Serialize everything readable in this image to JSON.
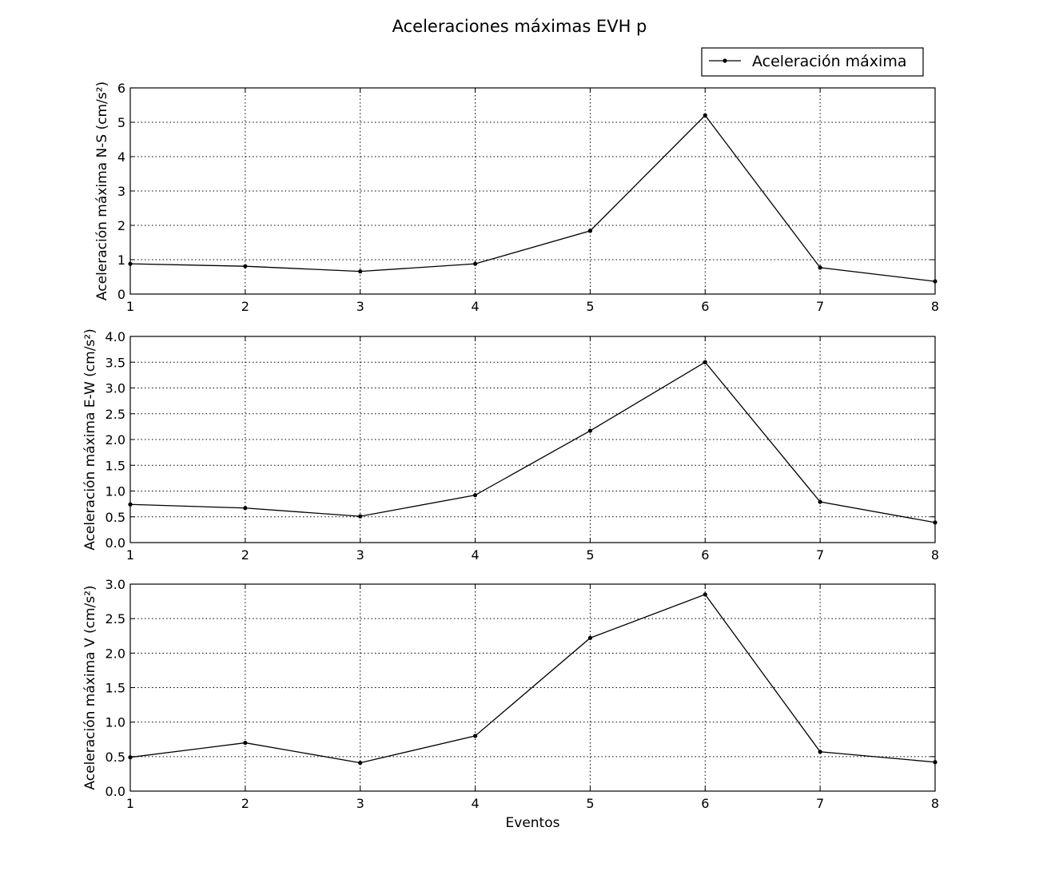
{
  "chart_data": {
    "type": "line",
    "title": "Aceleraciones máximas EVH p",
    "legend": {
      "entry": "Aceleración máxima",
      "placement": "top-right"
    },
    "grid": true,
    "marker_color": "#000000",
    "line_color": "#000000",
    "subplots": [
      {
        "ylabel": "Aceleración máxima N-S (cm/s²)",
        "xlabel": "",
        "x": [
          1,
          2,
          3,
          4,
          5,
          6,
          7,
          8
        ],
        "values": [
          0.88,
          0.81,
          0.66,
          0.88,
          1.84,
          5.2,
          0.77,
          0.37
        ],
        "xlim": [
          1,
          8
        ],
        "ylim": [
          0,
          6
        ],
        "xticks": [
          "1",
          "2",
          "3",
          "4",
          "5",
          "6",
          "7",
          "8"
        ],
        "yticks": [
          0,
          1,
          2,
          3,
          4,
          5,
          6
        ],
        "ytick_labels": [
          "0",
          "1",
          "2",
          "3",
          "4",
          "5",
          "6"
        ]
      },
      {
        "ylabel": "Aceleración máxima E-W (cm/s²)",
        "xlabel": "",
        "x": [
          1,
          2,
          3,
          4,
          5,
          6,
          7,
          8
        ],
        "values": [
          0.74,
          0.67,
          0.51,
          0.92,
          2.17,
          3.5,
          0.79,
          0.39
        ],
        "xlim": [
          1,
          8
        ],
        "ylim": [
          0,
          4
        ],
        "xticks": [
          "1",
          "2",
          "3",
          "4",
          "5",
          "6",
          "7",
          "8"
        ],
        "yticks": [
          0,
          0.5,
          1,
          1.5,
          2,
          2.5,
          3,
          3.5,
          4
        ],
        "ytick_labels": [
          "0.0",
          "0.5",
          "1.0",
          "1.5",
          "2.0",
          "2.5",
          "3.0",
          "3.5",
          "4.0"
        ]
      },
      {
        "ylabel": "Aceleración máxima V (cm/s²)",
        "xlabel": "Eventos",
        "x": [
          1,
          2,
          3,
          4,
          5,
          6,
          7,
          8
        ],
        "values": [
          0.49,
          0.7,
          0.41,
          0.8,
          2.22,
          2.85,
          0.57,
          0.42
        ],
        "xlim": [
          1,
          8
        ],
        "ylim": [
          0,
          3
        ],
        "xticks": [
          "1",
          "2",
          "3",
          "4",
          "5",
          "6",
          "7",
          "8"
        ],
        "yticks": [
          0,
          0.5,
          1,
          1.5,
          2,
          2.5,
          3
        ],
        "ytick_labels": [
          "0.0",
          "0.5",
          "1.0",
          "1.5",
          "2.0",
          "2.5",
          "3.0"
        ]
      }
    ]
  }
}
